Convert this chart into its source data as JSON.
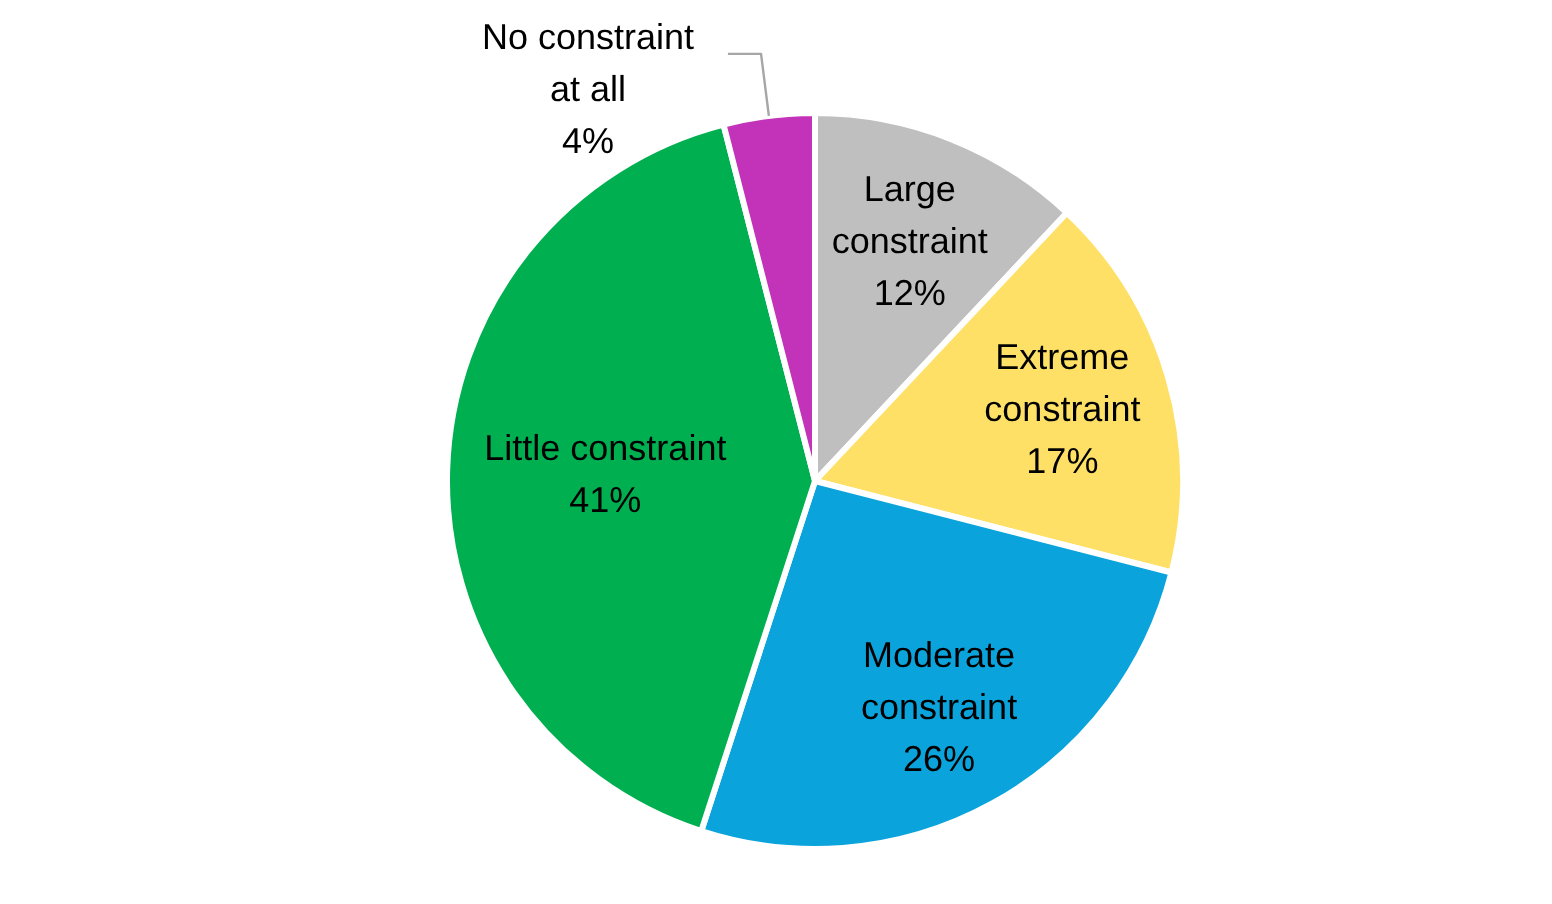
{
  "chart_data": {
    "type": "pie",
    "categories": [
      "Large constraint",
      "Extreme constraint",
      "Moderate constraint",
      "Little constraint",
      "No constraint at all"
    ],
    "values": [
      12,
      17,
      26,
      41,
      4
    ],
    "colors": [
      "#bfbfbf",
      "#ffe066",
      "#0aa3db",
      "#00b050",
      "#c333b9"
    ],
    "value_labels": [
      "12%",
      "17%",
      "26%",
      "41%",
      "4%"
    ]
  }
}
